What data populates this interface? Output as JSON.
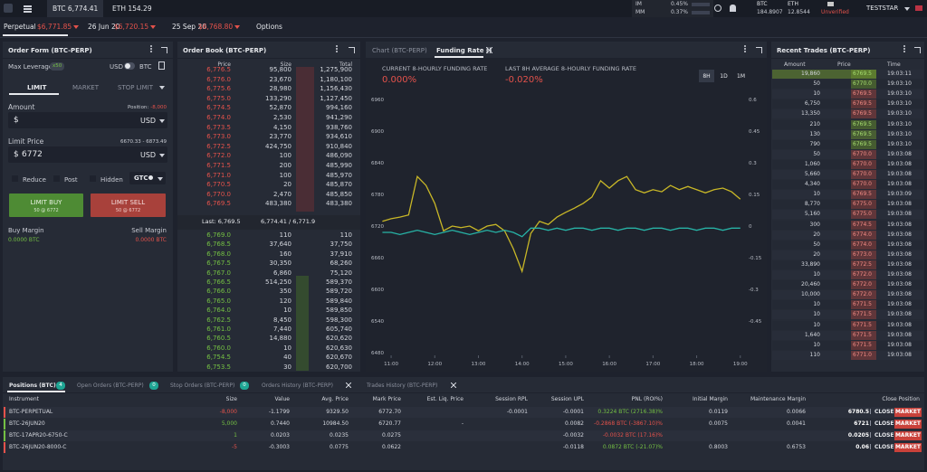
{
  "header": {
    "tickers": [
      "BTC 6,774.41",
      "ETH 154.29"
    ],
    "im_label": "IM",
    "im_value": "0.45%",
    "mm_label": "MM",
    "mm_value": "0.37%",
    "balances": [
      {
        "name": "BTC",
        "value": "184.8907"
      },
      {
        "name": "ETH",
        "value": "12.8544"
      }
    ],
    "status": "Unverified",
    "user": "TESTSTAR"
  },
  "tabs": [
    {
      "label": "Perpetual",
      "price": "$6,771.85"
    },
    {
      "label": "26 Jun 20",
      "price": "$6,720.15"
    },
    {
      "label": "25 Sep 20",
      "price": "$6,768.80"
    },
    {
      "label": "Options"
    }
  ],
  "order_form": {
    "title": "Order Form (BTC-PERP)",
    "max_leverage": "Max Leverage",
    "leverage": "x50",
    "usd": "USD",
    "btc": "BTC",
    "order_tabs": [
      "LIMIT",
      "MARKET",
      "STOP LIMIT"
    ],
    "amount_label": "Amount",
    "position_label": "Position:",
    "position_value": "-8,000",
    "currency": "$",
    "unit": "USD",
    "limit_price_label": "Limit Price",
    "limit_range": "6670.33 - 6873.49",
    "limit_price": "6772",
    "options": [
      "Reduce",
      "Post",
      "Hidden"
    ],
    "tif": "GTC",
    "buy_button": "LIMIT BUY",
    "buy_sub": "50 @ 6772",
    "sell_button": "LIMIT SELL",
    "sell_sub": "50 @ 6772",
    "buy_margin_label": "Buy Margin",
    "buy_margin": "0.0000 BTC",
    "sell_margin_label": "Sell Margin",
    "sell_margin": "0.0000 BTC"
  },
  "order_book": {
    "title": "Order Book (BTC-PERP)",
    "columns": [
      "Price",
      "Size",
      "Total"
    ],
    "asks": [
      [
        "6,776.5",
        "95,800",
        "1,275,900"
      ],
      [
        "6,776.0",
        "23,670",
        "1,180,100"
      ],
      [
        "6,775.6",
        "28,980",
        "1,156,430"
      ],
      [
        "6,775.0",
        "133,290",
        "1,127,450"
      ],
      [
        "6,774.5",
        "52,870",
        "994,160"
      ],
      [
        "6,774.0",
        "2,530",
        "941,290"
      ],
      [
        "6,773.5",
        "4,150",
        "938,760"
      ],
      [
        "6,773.0",
        "23,770",
        "934,610"
      ],
      [
        "6,772.5",
        "424,750",
        "910,840"
      ],
      [
        "6,772.0",
        "100",
        "486,090"
      ],
      [
        "6,771.5",
        "200",
        "485,990"
      ],
      [
        "6,771.0",
        "100",
        "485,970"
      ],
      [
        "6,770.5",
        "20",
        "485,870"
      ],
      [
        "6,770.0",
        "2,470",
        "485,850"
      ],
      [
        "6,769.5",
        "483,380",
        "483,380"
      ]
    ],
    "last": "Last: 6,769.5",
    "mid": "6,774.41 / 6,771.9",
    "bids": [
      [
        "6,769.0",
        "110",
        "110"
      ],
      [
        "6,768.5",
        "37,640",
        "37,750"
      ],
      [
        "6,768.0",
        "160",
        "37,910"
      ],
      [
        "6,767.5",
        "30,350",
        "68,260"
      ],
      [
        "6,767.0",
        "6,860",
        "75,120"
      ],
      [
        "6,766.5",
        "514,250",
        "589,370"
      ],
      [
        "6,766.0",
        "350",
        "589,720"
      ],
      [
        "6,765.0",
        "120",
        "589,840"
      ],
      [
        "6,764.0",
        "10",
        "589,850"
      ],
      [
        "6,762.5",
        "8,450",
        "598,300"
      ],
      [
        "6,761.0",
        "7,440",
        "605,740"
      ],
      [
        "6,760.5",
        "14,880",
        "620,620"
      ],
      [
        "6,760.0",
        "10",
        "620,630"
      ],
      [
        "6,754.5",
        "40",
        "620,670"
      ],
      [
        "6,753.5",
        "30",
        "620,700"
      ]
    ]
  },
  "chart_panel": {
    "tabs": [
      "Chart (BTC-PERP)",
      "Funding Rate ()"
    ],
    "current_label": "CURRENT 8-HOURLY FUNDING RATE",
    "current_value": "0.000%",
    "average_label": "LAST 8H AVERAGE 8-HOURLY FUNDING RATE",
    "average_value": "-0.020%",
    "ranges": [
      "8H",
      "1D",
      "1M"
    ],
    "chart": {
      "type": "line",
      "x": [
        10.8,
        11,
        11.2,
        11.4,
        11.6,
        11.8,
        12,
        12.2,
        12.4,
        12.6,
        12.8,
        13,
        13.2,
        13.4,
        13.6,
        13.8,
        14,
        14.2,
        14.4,
        14.6,
        14.8,
        15,
        15.2,
        15.4,
        15.6,
        15.8,
        16,
        16.2,
        16.4,
        16.6,
        16.8,
        17,
        17.2,
        17.4,
        17.6,
        17.8,
        18,
        18.2,
        18.4,
        18.6,
        18.8,
        19
      ],
      "xlim": [
        10.75,
        19.15
      ],
      "xticks": [
        {
          "value": 11,
          "label": "11:00"
        },
        {
          "value": 12,
          "label": "12:00"
        },
        {
          "value": 13,
          "label": "13:00"
        },
        {
          "value": 14,
          "label": "14:00"
        },
        {
          "value": 15,
          "label": "15:00"
        },
        {
          "value": 16,
          "label": "16:00"
        },
        {
          "value": 17,
          "label": "17:00"
        },
        {
          "value": 18,
          "label": "18:00"
        },
        {
          "value": 19,
          "label": "19:00"
        }
      ],
      "ylim": [
        6480,
        6960
      ],
      "yticks": [
        6960,
        6900,
        6840,
        6780,
        6720,
        6660,
        6600,
        6540,
        6480
      ],
      "y2lim": [
        -0.6,
        0.6
      ],
      "y2ticks": [
        0.6,
        0.45,
        0.3,
        0.15,
        0,
        -0.15,
        -0.3,
        -0.45
      ],
      "series": [
        {
          "color": "#c8b727",
          "values": [
            6729,
            6734,
            6737,
            6741,
            6814,
            6797,
            6763,
            6711,
            6720,
            6717,
            6720,
            6711,
            6720,
            6723,
            6711,
            6677,
            6634,
            6706,
            6729,
            6723,
            6737,
            6746,
            6754,
            6763,
            6775,
            6806,
            6792,
            6806,
            6814,
            6789,
            6783,
            6789,
            6785,
            6797,
            6789,
            6795,
            6789,
            6783,
            6789,
            6792,
            6785,
            6771
          ]
        },
        {
          "color": "#27b3a6",
          "axis": "y2",
          "values": [
            -0.03,
            -0.03,
            -0.04,
            -0.03,
            -0.02,
            -0.03,
            -0.04,
            -0.03,
            -0.02,
            -0.03,
            -0.04,
            -0.03,
            -0.02,
            -0.03,
            -0.02,
            -0.03,
            -0.05,
            -0.01,
            -0.01,
            -0.02,
            -0.01,
            -0.02,
            -0.01,
            -0.01,
            -0.02,
            -0.01,
            -0.01,
            -0.02,
            -0.01,
            -0.01,
            -0.02,
            -0.01,
            -0.01,
            -0.02,
            -0.01,
            -0.01,
            -0.02,
            -0.01,
            -0.01,
            -0.02,
            -0.01,
            -0.01
          ]
        }
      ]
    }
  },
  "recent_trades": {
    "title": "Recent Trades (BTC-PERP)",
    "columns": [
      "Amount",
      "Price",
      "Time"
    ],
    "rows": [
      {
        "amount": "19,860",
        "price": "6769.5",
        "time": "19:03:11",
        "color": "#6f9a2c"
      },
      {
        "amount": "50",
        "price": "6770.0",
        "time": "19:03:10",
        "color": "#6f9a2c"
      },
      {
        "amount": "10",
        "price": "6769.5",
        "time": "19:03:10",
        "color": "#a5423c"
      },
      {
        "amount": "6,750",
        "price": "6769.5",
        "time": "19:03:10",
        "color": "#a5423c"
      },
      {
        "amount": "13,350",
        "price": "6769.5",
        "time": "19:03:10",
        "color": "#a5423c"
      },
      {
        "amount": "210",
        "price": "6769.5",
        "time": "19:03:10",
        "color": "#6f9a2c"
      },
      {
        "amount": "130",
        "price": "6769.5",
        "time": "19:03:10",
        "color": "#6f9a2c"
      },
      {
        "amount": "790",
        "price": "6769.5",
        "time": "19:03:10",
        "color": "#6f9a2c"
      },
      {
        "amount": "50",
        "price": "6770.0",
        "time": "19:03:08",
        "color": "#a5423c"
      },
      {
        "amount": "1,060",
        "price": "6770.0",
        "time": "19:03:08",
        "color": "#a5423c"
      },
      {
        "amount": "5,660",
        "price": "6770.0",
        "time": "19:03:08",
        "color": "#a5423c"
      },
      {
        "amount": "4,340",
        "price": "6770.0",
        "time": "19:03:08",
        "color": "#a5423c"
      },
      {
        "amount": "10",
        "price": "6769.5",
        "time": "19:03:09",
        "color": "#a5423c"
      },
      {
        "amount": "8,770",
        "price": "6775.0",
        "time": "19:03:08",
        "color": "#a5423c"
      },
      {
        "amount": "5,160",
        "price": "6775.0",
        "time": "19:03:08",
        "color": "#a5423c"
      },
      {
        "amount": "300",
        "price": "6774.5",
        "time": "19:03:08",
        "color": "#a5423c"
      },
      {
        "amount": "20",
        "price": "6774.0",
        "time": "19:03:08",
        "color": "#a5423c"
      },
      {
        "amount": "50",
        "price": "6774.0",
        "time": "19:03:08",
        "color": "#a5423c"
      },
      {
        "amount": "20",
        "price": "6773.0",
        "time": "19:03:08",
        "color": "#a5423c"
      },
      {
        "amount": "33,890",
        "price": "6772.5",
        "time": "19:03:08",
        "color": "#a5423c"
      },
      {
        "amount": "10",
        "price": "6772.0",
        "time": "19:03:08",
        "color": "#a5423c"
      },
      {
        "amount": "20,460",
        "price": "6772.0",
        "time": "19:03:08",
        "color": "#a5423c"
      },
      {
        "amount": "10,000",
        "price": "6772.0",
        "time": "19:03:08",
        "color": "#a5423c"
      },
      {
        "amount": "10",
        "price": "6771.5",
        "time": "19:03:08",
        "color": "#a5423c"
      },
      {
        "amount": "10",
        "price": "6771.5",
        "time": "19:03:08",
        "color": "#a5423c"
      },
      {
        "amount": "10",
        "price": "6771.5",
        "time": "19:03:08",
        "color": "#a5423c"
      },
      {
        "amount": "1,640",
        "price": "6771.5",
        "time": "19:03:08",
        "color": "#a5423c"
      },
      {
        "amount": "10",
        "price": "6771.5",
        "time": "19:03:08",
        "color": "#a5423c"
      },
      {
        "amount": "110",
        "price": "6771.0",
        "time": "19:03:08",
        "color": "#a5423c"
      }
    ]
  },
  "positions": {
    "tabs": [
      {
        "label": "Positions (BTC)",
        "count": "4"
      },
      {
        "label": "Open Orders (BTC-PERP)",
        "count": "0"
      },
      {
        "label": "Stop Orders (BTC-PERP)",
        "count": "0"
      },
      {
        "label": "Orders History (BTC-PERP)"
      },
      {
        "label": "Trades History (BTC-PERP)"
      }
    ],
    "columns": [
      "Instrument",
      "Size",
      "Value",
      "Avg. Price",
      "Mark Price",
      "Est. Liq. Price",
      "Session RPL",
      "Session UPL",
      "PNL (ROI%)",
      "Initial Margin",
      "Maintenance Margin",
      "Close Position"
    ],
    "close": "CLOSE",
    "market": "MARKET",
    "rows": [
      [
        "BTC-PERPETUAL",
        "-8,000",
        "-1.1799",
        "9329.50",
        "6772.70",
        null,
        "-0.0001",
        "-0.0001",
        "0.3224 BTC (2716.38)%",
        "0.0119",
        "0.0066",
        "6780.5"
      ],
      [
        "BTC-26JUN20",
        "5,000",
        "0.7440",
        "10984.50",
        "6720.77",
        "-",
        null,
        "0.0082",
        "-0.2868 BTC (-3867.10)%",
        "0.0075",
        "0.0041",
        "6721"
      ],
      [
        "BTC-17APR20-6750-C",
        "1",
        "0.0203",
        "0.0235",
        "0.0275",
        null,
        null,
        "-0.0032",
        "-0.0032 BTC (17.16)%",
        null,
        null,
        "0.0205"
      ],
      [
        "BTC-26JUN20-8000-C",
        "-5",
        "-0.3003",
        "0.0775",
        "0.0622",
        null,
        null,
        "-0.0118",
        "0.0872 BTC (-21.07)%",
        "0.8003",
        "0.6753",
        "0.06"
      ]
    ]
  }
}
